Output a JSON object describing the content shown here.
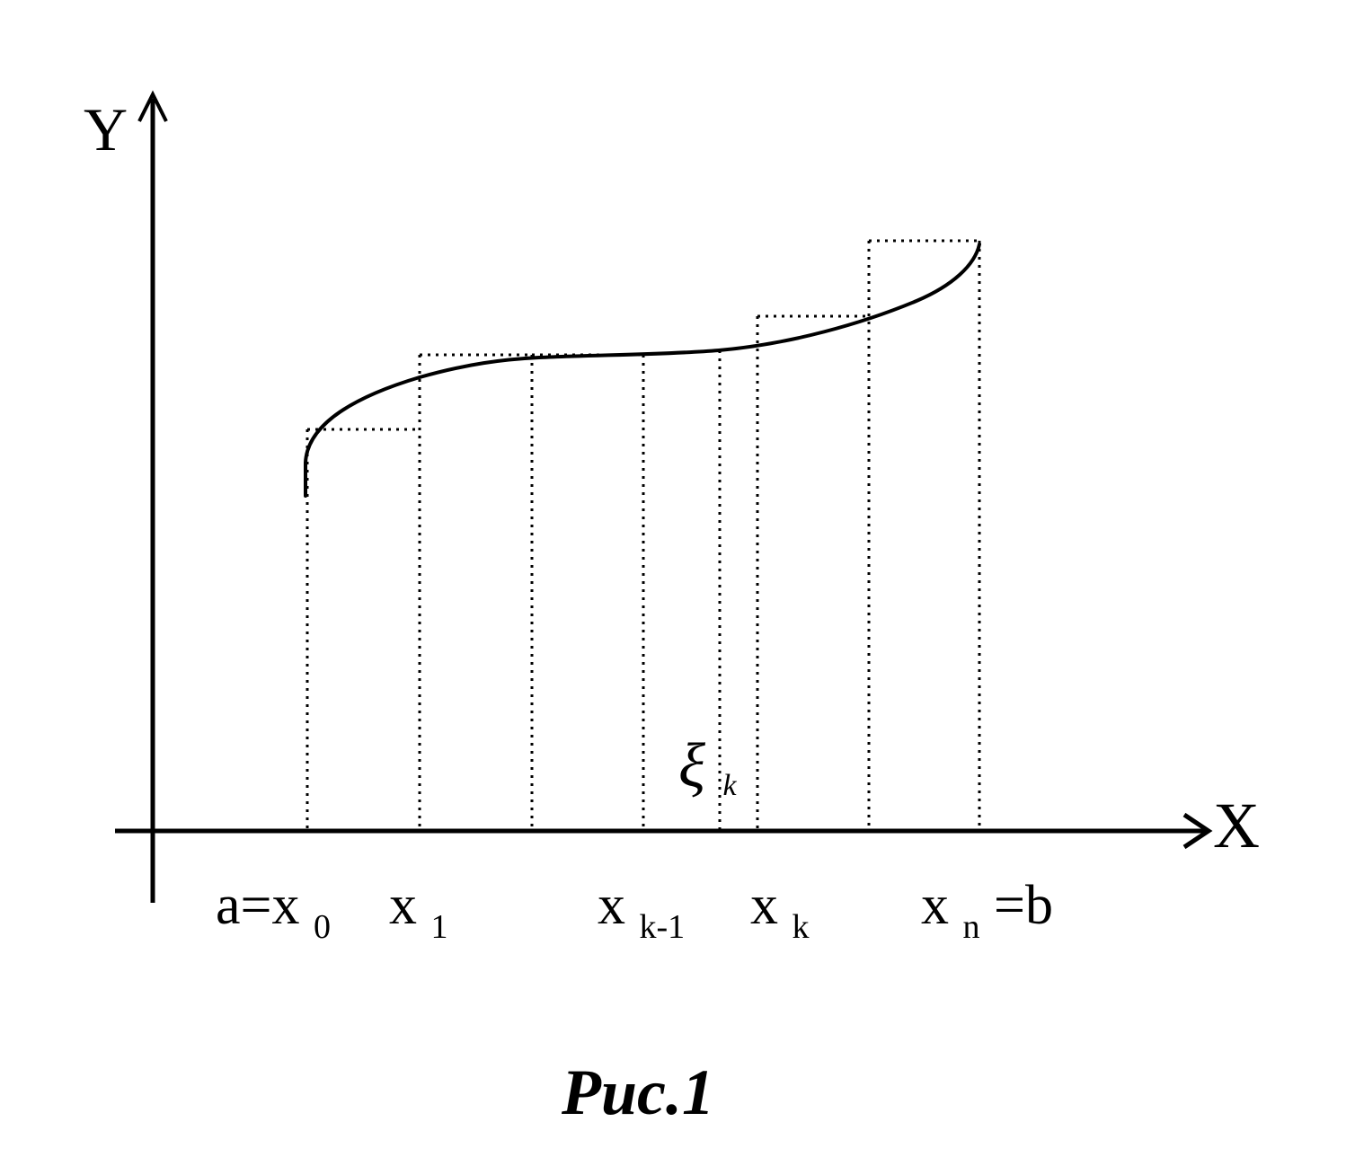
{
  "figure": {
    "axis_y_label": "Y",
    "axis_x_label": "X",
    "labels": {
      "a_prefix": "a=x",
      "a_sub": "0",
      "x1_base": "x",
      "x1_sub": "1",
      "xk1_base": "x",
      "xk1_sub": "k-1",
      "xk_base": "x",
      "xk_sub": "k",
      "xn_base": "x",
      "xn_sub": "n",
      "xn_suffix": "=b",
      "xi_base": "ξ",
      "xi_sub": "k"
    },
    "caption": "Рис.1"
  },
  "colors": {
    "ink": "#000000",
    "background": "#ffffff"
  }
}
